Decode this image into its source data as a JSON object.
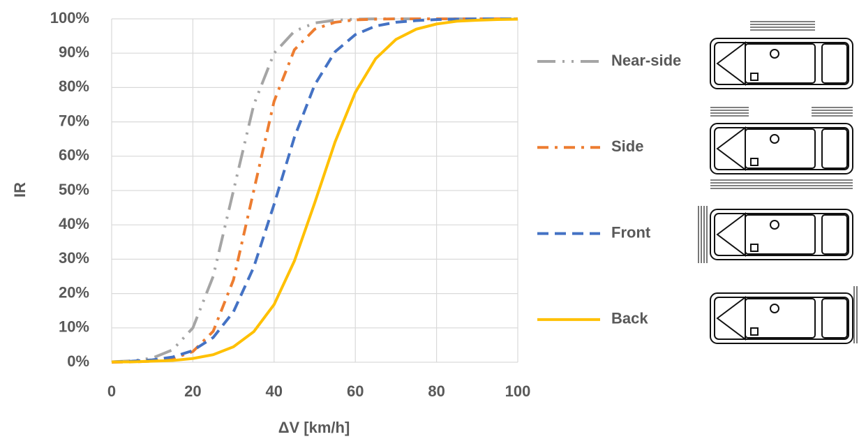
{
  "chart_data": {
    "type": "line",
    "x_label": "ΔV [km/h]",
    "y_label": "IR",
    "x": [
      0,
      5,
      10,
      15,
      20,
      25,
      30,
      35,
      40,
      45,
      50,
      55,
      60,
      65,
      70,
      75,
      80,
      85,
      90,
      95,
      100
    ],
    "series": [
      {
        "name": "Near-side",
        "color": "#a5a5a5",
        "line_style": "long-dash-dot-dot",
        "values": [
          0.1,
          0.4,
          1.2,
          3.6,
          10,
          25,
          50,
          75,
          90,
          96.4,
          98.8,
          99.6,
          99.9,
          100,
          100,
          100,
          100,
          100,
          100,
          100,
          100
        ]
      },
      {
        "name": "Side",
        "color": "#ed7d31",
        "line_style": "dash-dot",
        "values": [
          0,
          0.1,
          0.3,
          1,
          3.1,
          9,
          24,
          50,
          76,
          91,
          97,
          99,
          99.7,
          99.9,
          100,
          100,
          100,
          100,
          100,
          100,
          100
        ]
      },
      {
        "name": "Front",
        "color": "#4472c4",
        "line_style": "dash",
        "values": [
          0.1,
          0.3,
          0.7,
          1.5,
          3.4,
          7.2,
          14.7,
          27.7,
          46,
          65.5,
          80.8,
          90.4,
          95.4,
          97.9,
          99,
          99.5,
          99.8,
          99.9,
          100,
          100,
          100
        ]
      },
      {
        "name": "Back",
        "color": "#ffc000",
        "line_style": "solid",
        "values": [
          0.1,
          0.1,
          0.3,
          0.5,
          1.1,
          2.2,
          4.5,
          8.9,
          16.8,
          29.5,
          46.4,
          64.1,
          78.6,
          88.4,
          94,
          97,
          98.5,
          99.3,
          99.6,
          99.8,
          99.9
        ]
      }
    ],
    "xlim": [
      0,
      100
    ],
    "xticks": [
      0,
      20,
      40,
      60,
      80,
      100
    ],
    "ylim": [
      0,
      100
    ],
    "yticks": [
      {
        "value": 0,
        "label": "0%"
      },
      {
        "value": 10,
        "label": "10%"
      },
      {
        "value": 20,
        "label": "20%"
      },
      {
        "value": 30,
        "label": "30%"
      },
      {
        "value": 40,
        "label": "40%"
      },
      {
        "value": 50,
        "label": "50%"
      },
      {
        "value": 60,
        "label": "60%"
      },
      {
        "value": 70,
        "label": "70%"
      },
      {
        "value": 80,
        "label": "80%"
      },
      {
        "value": 90,
        "label": "90%"
      },
      {
        "value": 100,
        "label": "100%"
      }
    ],
    "grid": true,
    "legend": "right"
  }
}
